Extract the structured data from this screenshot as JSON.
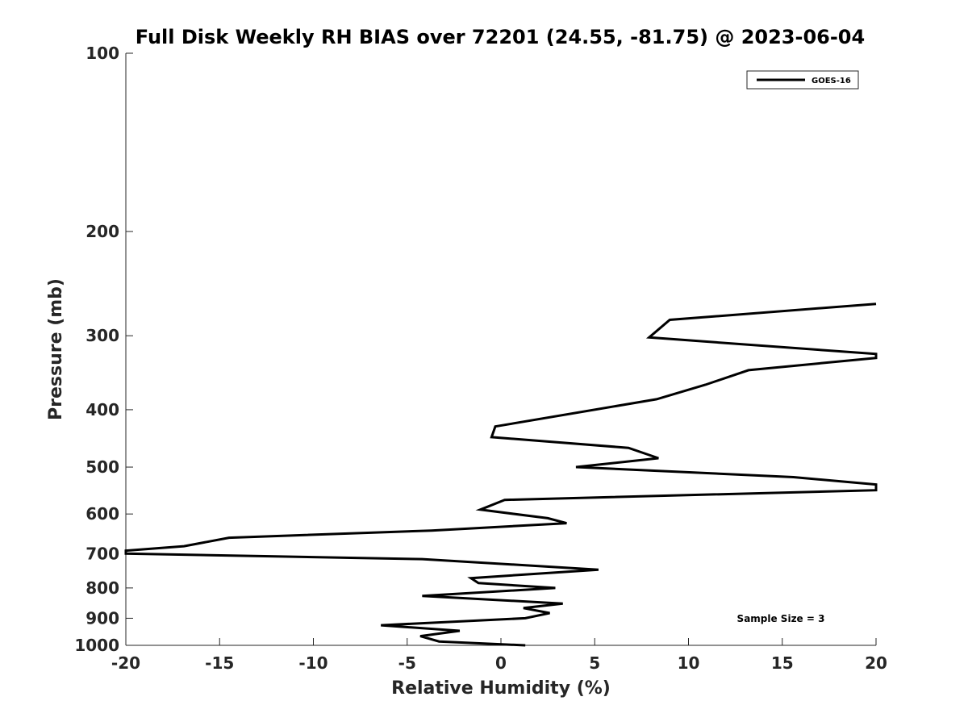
{
  "chart_data": {
    "type": "line",
    "title": "Full Disk Weekly RH BIAS over 72201 (24.55, -81.75) @ 2023-06-04",
    "xlabel": "Relative Humidity (%)",
    "ylabel": "Pressure (mb)",
    "xlim": [
      -20,
      20
    ],
    "ylim": [
      1000,
      100
    ],
    "y_scale": "log",
    "x_ticks": [
      -20,
      -15,
      -10,
      -5,
      0,
      5,
      10,
      15,
      20
    ],
    "x_tick_labels": [
      "-20",
      "-15",
      "-10",
      "-5",
      "0",
      "5",
      "10",
      "15",
      "20"
    ],
    "y_ticks": [
      1000,
      900,
      800,
      700,
      600,
      500,
      400,
      300,
      200,
      100
    ],
    "y_tick_labels": [
      "1000",
      "900",
      "800",
      "700",
      "600",
      "500",
      "400",
      "300",
      "200",
      "100"
    ],
    "grid": false,
    "legend_position": "top-right",
    "line_color": "#000000",
    "annotation": "Sample Size = 3",
    "series": [
      {
        "name": "GOES-16",
        "points": [
          {
            "x": 1.3,
            "y": 1000
          },
          {
            "x": -3.3,
            "y": 985
          },
          {
            "x": -4.3,
            "y": 965
          },
          {
            "x": -2.2,
            "y": 945
          },
          {
            "x": -6.4,
            "y": 925
          },
          {
            "x": 1.3,
            "y": 900
          },
          {
            "x": 2.6,
            "y": 882
          },
          {
            "x": 1.2,
            "y": 865
          },
          {
            "x": 3.3,
            "y": 850
          },
          {
            "x": -4.2,
            "y": 825
          },
          {
            "x": 2.9,
            "y": 800
          },
          {
            "x": -1.2,
            "y": 785
          },
          {
            "x": -1.6,
            "y": 770
          },
          {
            "x": 5.2,
            "y": 745
          },
          {
            "x": -4.2,
            "y": 715
          },
          {
            "x": -20,
            "y": 700
          },
          {
            "x": -20,
            "y": 692
          },
          {
            "x": -16.9,
            "y": 680
          },
          {
            "x": -14.5,
            "y": 658
          },
          {
            "x": -3.7,
            "y": 640
          },
          {
            "x": 3.5,
            "y": 622
          },
          {
            "x": 2.5,
            "y": 610
          },
          {
            "x": -1.1,
            "y": 590
          },
          {
            "x": 0.2,
            "y": 568
          },
          {
            "x": 20,
            "y": 547
          },
          {
            "x": 20,
            "y": 535
          },
          {
            "x": 15.6,
            "y": 520
          },
          {
            "x": 4.0,
            "y": 500
          },
          {
            "x": 8.4,
            "y": 483
          },
          {
            "x": 6.8,
            "y": 464
          },
          {
            "x": -0.5,
            "y": 445
          },
          {
            "x": -0.3,
            "y": 427
          },
          {
            "x": 8.3,
            "y": 384
          },
          {
            "x": 10.9,
            "y": 363
          },
          {
            "x": 13.2,
            "y": 343
          },
          {
            "x": 20,
            "y": 327
          },
          {
            "x": 20,
            "y": 322
          },
          {
            "x": 7.9,
            "y": 302
          },
          {
            "x": 9.0,
            "y": 282
          },
          {
            "x": 20,
            "y": 265
          }
        ]
      }
    ]
  }
}
